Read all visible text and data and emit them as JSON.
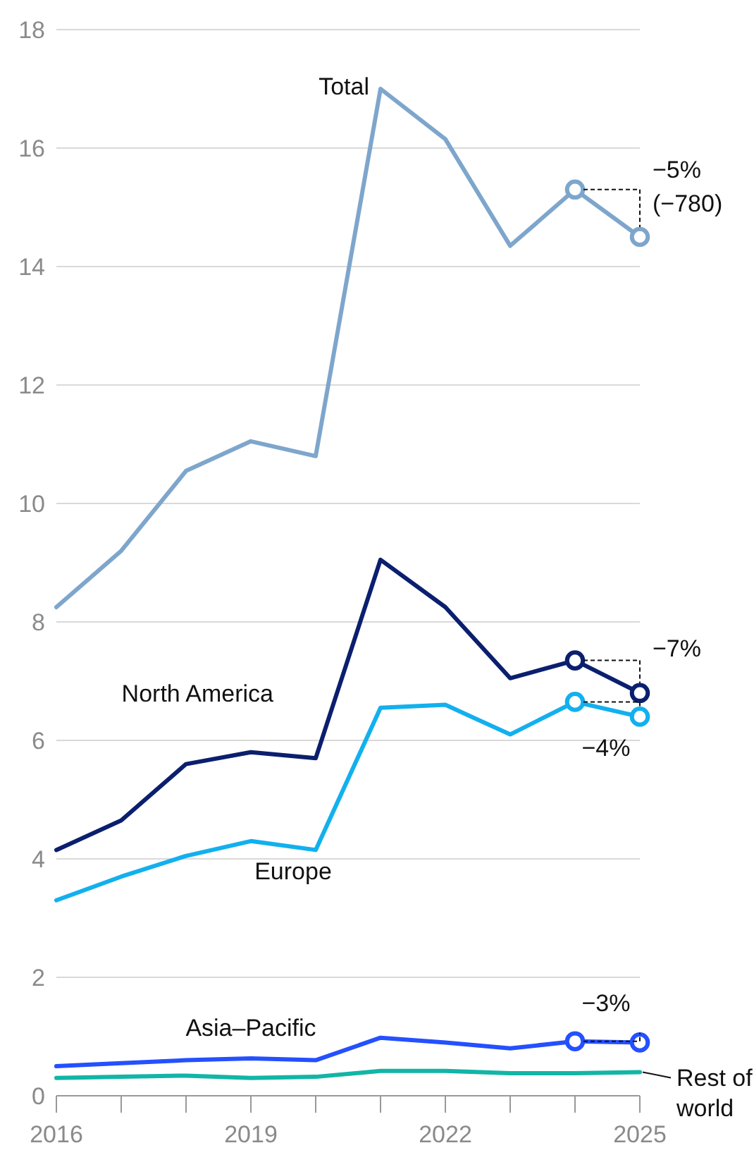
{
  "chart_data": {
    "type": "line",
    "x": [
      2016,
      2017,
      2018,
      2019,
      2020,
      2021,
      2022,
      2023,
      2024,
      2025
    ],
    "series": [
      {
        "name": "Total",
        "color": "#7ea6cc",
        "values": [
          8.25,
          9.2,
          10.55,
          11.05,
          10.8,
          17.0,
          16.15,
          14.35,
          15.3,
          14.5
        ]
      },
      {
        "name": "North America",
        "color": "#0b1f6e",
        "values": [
          4.15,
          4.65,
          5.6,
          5.8,
          5.7,
          9.05,
          8.25,
          7.05,
          7.35,
          6.8
        ]
      },
      {
        "name": "Europe",
        "color": "#12b0ee",
        "values": [
          3.3,
          3.7,
          4.05,
          4.3,
          4.15,
          6.55,
          6.6,
          6.1,
          6.65,
          6.4
        ]
      },
      {
        "name": "Asia–Pacific",
        "color": "#2450ff",
        "values": [
          0.5,
          0.55,
          0.6,
          0.63,
          0.6,
          0.98,
          0.9,
          0.8,
          0.92,
          0.9
        ]
      },
      {
        "name": "Rest of world",
        "color": "#12b5a6",
        "values": [
          0.3,
          0.32,
          0.34,
          0.3,
          0.32,
          0.42,
          0.42,
          0.38,
          0.38,
          0.4
        ]
      },
      {
        "type": "scatter",
        "marker": "circle",
        "color": "#7ea6cc",
        "values": [
          null,
          null,
          null,
          null,
          null,
          null,
          null,
          null,
          15.3,
          14.5
        ]
      },
      {
        "type": "scatter",
        "marker": "circle",
        "color": "#0b1f6e",
        "values": [
          null,
          null,
          null,
          null,
          null,
          null,
          null,
          null,
          7.35,
          6.8
        ]
      },
      {
        "type": "scatter",
        "marker": "circle",
        "color": "#12b0ee",
        "values": [
          null,
          null,
          null,
          null,
          null,
          null,
          null,
          null,
          6.65,
          6.4
        ]
      },
      {
        "type": "scatter",
        "marker": "circle",
        "color": "#2450ff",
        "values": [
          null,
          null,
          null,
          null,
          null,
          null,
          null,
          null,
          0.92,
          0.9
        ]
      }
    ],
    "xlim": [
      2016,
      2025
    ],
    "xticks": [
      2016,
      {
        "value": 2017,
        "label": null
      },
      {
        "value": 2018,
        "label": null
      },
      2019,
      {
        "value": 2020,
        "label": null
      },
      {
        "value": 2021,
        "label": null
      },
      2022,
      {
        "value": 2023,
        "label": null
      },
      {
        "value": 2024,
        "label": null
      },
      2025
    ],
    "ylim": [
      0,
      18
    ],
    "yticks": [
      0,
      2,
      4,
      6,
      8,
      10,
      12,
      14,
      16,
      18
    ],
    "grid": "y",
    "legend": false,
    "annotations": [
      "−5%",
      {
        "text": "(−780)",
        "x": 2025,
        "y": 14.5
      },
      {
        "text": "−7%",
        "x": 2025,
        "y": 6.8
      },
      "−4%",
      "−3%"
    ]
  }
}
